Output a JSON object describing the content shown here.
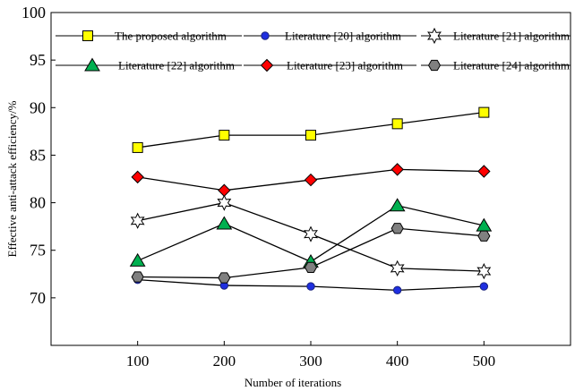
{
  "chart_data": {
    "type": "line",
    "title": "",
    "xlabel": "Number of iterations",
    "ylabel": "Effective anti-attack efficiency/%",
    "x": [
      100,
      200,
      300,
      400,
      500
    ],
    "xlim": [
      0,
      600
    ],
    "ylim": [
      65,
      100
    ],
    "xticks": [
      "100",
      "200",
      "300",
      "400",
      "500"
    ],
    "yticks": [
      "70",
      "75",
      "80",
      "85",
      "90",
      "95",
      "100"
    ],
    "grid": false,
    "legend_position": "top",
    "series": [
      {
        "name": "The proposed algorithm",
        "marker": "square",
        "color": "#ffff00",
        "values": [
          85.8,
          87.1,
          87.1,
          88.3,
          89.5
        ]
      },
      {
        "name": "Literature [20] algorithm",
        "marker": "circle",
        "color": "#1f2fe0",
        "values": [
          71.9,
          71.3,
          71.2,
          70.8,
          71.2
        ]
      },
      {
        "name": "Literature [21] algorithm",
        "marker": "star",
        "color": "#ffffff",
        "values": [
          78.1,
          80.0,
          76.7,
          73.1,
          72.8
        ]
      },
      {
        "name": "Literature [22] algorithm",
        "marker": "triangle",
        "color": "#00b050",
        "values": [
          73.9,
          77.8,
          73.8,
          79.7,
          77.6
        ]
      },
      {
        "name": "Literature [23] algorithm",
        "marker": "diamond",
        "color": "#ff0000",
        "values": [
          82.7,
          81.3,
          82.4,
          83.5,
          83.3
        ]
      },
      {
        "name": "Literature [24] algorithm",
        "marker": "hexagon",
        "color": "#808080",
        "values": [
          72.2,
          72.1,
          73.2,
          77.3,
          76.5
        ]
      }
    ]
  }
}
